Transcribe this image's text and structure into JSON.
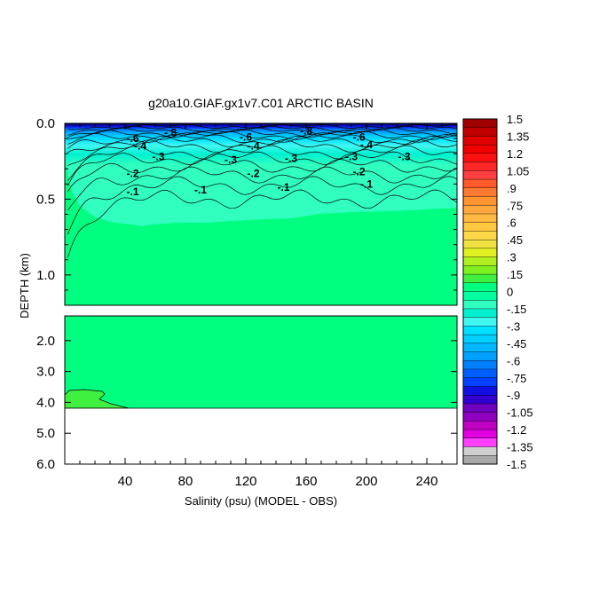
{
  "chart_data": {
    "type": "heatmap",
    "title": "g20a10.GIAF.gx1v7.C01 ARCTIC BASIN",
    "xlabel": "Salinity (psu) (MODEL - OBS)",
    "ylabel": "DEPTH (km)",
    "x_ticks": [
      "40",
      "80",
      "120",
      "160",
      "200",
      "240"
    ],
    "xlim": [
      0,
      260
    ],
    "upper_panel": {
      "ylim": [
        0,
        1.2
      ],
      "y_ticks": [
        "0.0",
        "0.5",
        "1.0"
      ]
    },
    "lower_panel": {
      "ylim": [
        1.2,
        6.0
      ],
      "y_ticks": [
        "2.0",
        "3.0",
        "4.0",
        "5.0",
        "6.0"
      ],
      "ocean_floor_km": 4.15
    },
    "contour_labels": [
      {
        "text": "-.3",
        "x": 62,
        "y": 0.22
      },
      {
        "text": "-.3",
        "x": 110,
        "y": 0.24
      },
      {
        "text": "-.3",
        "x": 150,
        "y": 0.23
      },
      {
        "text": "-.3",
        "x": 190,
        "y": 0.22
      },
      {
        "text": "-.3",
        "x": 225,
        "y": 0.22
      },
      {
        "text": "-.2",
        "x": 45,
        "y": 0.33
      },
      {
        "text": "-.2",
        "x": 125,
        "y": 0.33
      },
      {
        "text": "-.2",
        "x": 195,
        "y": 0.32
      },
      {
        "text": "-.1",
        "x": 45,
        "y": 0.45
      },
      {
        "text": "-.1",
        "x": 90,
        "y": 0.44
      },
      {
        "text": "-.1",
        "x": 145,
        "y": 0.42
      },
      {
        "text": "-.1",
        "x": 200,
        "y": 0.4
      },
      {
        "text": "-.4",
        "x": 50,
        "y": 0.15
      },
      {
        "text": "-.4",
        "x": 125,
        "y": 0.15
      },
      {
        "text": "-.4",
        "x": 200,
        "y": 0.14
      },
      {
        "text": "-.6",
        "x": 45,
        "y": 0.1
      },
      {
        "text": "-.6",
        "x": 120,
        "y": 0.09
      },
      {
        "text": "-.6",
        "x": 195,
        "y": 0.09
      },
      {
        "text": "-.8",
        "x": 70,
        "y": 0.06
      },
      {
        "text": "-.8",
        "x": 160,
        "y": 0.05
      }
    ],
    "colorbar": {
      "range": [
        -1.5,
        1.5
      ],
      "labels": [
        "1.5",
        "1.35",
        "1.2",
        "1.05",
        ".9",
        ".75",
        ".6",
        ".45",
        ".3",
        ".15",
        "0",
        "-.15",
        "-.3",
        "-.45",
        "-.6",
        "-.75",
        "-.9",
        "-1.05",
        "-1.2",
        "-1.35",
        "-1.5"
      ],
      "colors": [
        "#a00000",
        "#c00000",
        "#e00000",
        "#f00000",
        "#ff1010",
        "#ff2828",
        "#ff4040",
        "#ff5a28",
        "#ff7a30",
        "#ff9430",
        "#ffa840",
        "#ffb840",
        "#ffc840",
        "#ffd848",
        "#f0e040",
        "#e0f020",
        "#b0f020",
        "#80f020",
        "#40f040",
        "#00ff80",
        "#00ffa0",
        "#30ffc0",
        "#00f0d0",
        "#40f8f0",
        "#00e0ff",
        "#00d0ff",
        "#00b8ff",
        "#00a0ff",
        "#0080ff",
        "#0060ff",
        "#0040ff",
        "#1010e0",
        "#3000d0",
        "#7000c0",
        "#9000c0",
        "#c000c0",
        "#e000e0",
        "#ff40ff",
        "#d0d0d0",
        "#a8a8a8"
      ]
    }
  }
}
